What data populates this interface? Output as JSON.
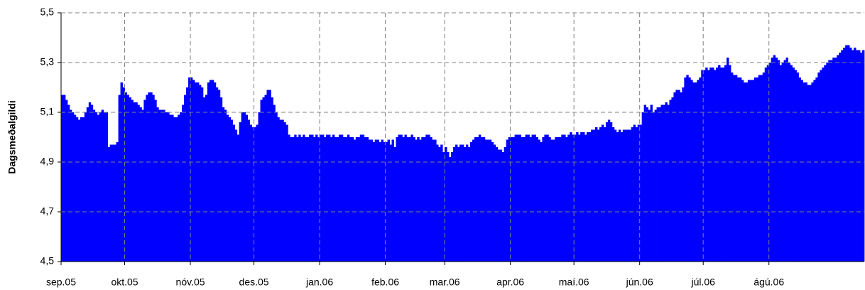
{
  "chart_data": {
    "type": "bar",
    "y_label": "Dagsmeðalgildi",
    "color": "#0000ff",
    "grid": true,
    "ylim": [
      4.5,
      5.5
    ],
    "yticks": [
      {
        "value": 4.5,
        "label": "4,5"
      },
      {
        "value": 4.7,
        "label": "4,7"
      },
      {
        "value": 4.9,
        "label": "4,9"
      },
      {
        "value": 5.1,
        "label": "5,1"
      },
      {
        "value": 5.3,
        "label": "5,3"
      },
      {
        "value": 5.5,
        "label": "5,5"
      }
    ],
    "categories": [
      "sep.05",
      null,
      null,
      null,
      null,
      null,
      null,
      null,
      null,
      null,
      null,
      null,
      null,
      null,
      null,
      null,
      null,
      null,
      null,
      null,
      null,
      null,
      null,
      null,
      null,
      null,
      null,
      null,
      null,
      null,
      "okt.05",
      null,
      null,
      null,
      null,
      null,
      null,
      null,
      null,
      null,
      null,
      null,
      null,
      null,
      null,
      null,
      null,
      null,
      null,
      null,
      null,
      null,
      null,
      null,
      null,
      null,
      null,
      null,
      null,
      null,
      null,
      "nóv.05",
      null,
      null,
      null,
      null,
      null,
      null,
      null,
      null,
      null,
      null,
      null,
      null,
      null,
      null,
      null,
      null,
      null,
      null,
      null,
      null,
      null,
      null,
      null,
      null,
      null,
      null,
      null,
      null,
      null,
      "des.05",
      null,
      null,
      null,
      null,
      null,
      null,
      null,
      null,
      null,
      null,
      null,
      null,
      null,
      null,
      null,
      null,
      null,
      null,
      null,
      null,
      null,
      null,
      null,
      null,
      null,
      null,
      null,
      null,
      null,
      null,
      "jan.06",
      null,
      null,
      null,
      null,
      null,
      null,
      null,
      null,
      null,
      null,
      null,
      null,
      null,
      null,
      null,
      null,
      null,
      null,
      null,
      null,
      null,
      null,
      null,
      null,
      null,
      null,
      null,
      null,
      null,
      null,
      "feb.06",
      null,
      null,
      null,
      null,
      null,
      null,
      null,
      null,
      null,
      null,
      null,
      null,
      null,
      null,
      null,
      null,
      null,
      null,
      null,
      null,
      null,
      null,
      null,
      null,
      null,
      null,
      null,
      "mar.06",
      null,
      null,
      null,
      null,
      null,
      null,
      null,
      null,
      null,
      null,
      null,
      null,
      null,
      null,
      null,
      null,
      null,
      null,
      null,
      null,
      null,
      null,
      null,
      null,
      null,
      null,
      null,
      null,
      null,
      null,
      "apr.06",
      null,
      null,
      null,
      null,
      null,
      null,
      null,
      null,
      null,
      null,
      null,
      null,
      null,
      null,
      null,
      null,
      null,
      null,
      null,
      null,
      null,
      null,
      null,
      null,
      null,
      null,
      null,
      null,
      null,
      "maí.06",
      null,
      null,
      null,
      null,
      null,
      null,
      null,
      null,
      null,
      null,
      null,
      null,
      null,
      null,
      null,
      null,
      null,
      null,
      null,
      null,
      null,
      null,
      null,
      null,
      null,
      null,
      null,
      null,
      null,
      null,
      "jún.06",
      null,
      null,
      null,
      null,
      null,
      null,
      null,
      null,
      null,
      null,
      null,
      null,
      null,
      null,
      null,
      null,
      null,
      null,
      null,
      null,
      null,
      null,
      null,
      null,
      null,
      null,
      null,
      null,
      null,
      "júl.06",
      null,
      null,
      null,
      null,
      null,
      null,
      null,
      null,
      null,
      null,
      null,
      null,
      null,
      null,
      null,
      null,
      null,
      null,
      null,
      null,
      null,
      null,
      null,
      null,
      null,
      null,
      null,
      null,
      null,
      null,
      "ágú.06",
      null,
      null,
      null,
      null,
      null,
      null,
      null,
      null,
      null,
      null,
      null,
      null,
      null,
      null,
      null,
      null,
      null,
      null,
      null,
      null,
      null,
      null,
      null,
      null,
      null,
      null,
      null,
      null,
      null,
      null,
      null,
      null,
      null,
      null,
      null,
      null,
      null,
      null,
      null,
      null,
      null,
      null,
      null,
      null
    ],
    "values": [
      5.17,
      5.17,
      5.15,
      5.13,
      5.11,
      5.1,
      5.09,
      5.08,
      5.07,
      5.08,
      5.08,
      5.1,
      5.12,
      5.14,
      5.13,
      5.11,
      5.1,
      5.09,
      5.1,
      5.11,
      5.1,
      5.1,
      4.96,
      4.97,
      4.97,
      4.97,
      4.98,
      5.17,
      5.22,
      5.2,
      5.18,
      5.17,
      5.16,
      5.15,
      5.14,
      5.14,
      5.13,
      5.12,
      5.11,
      5.15,
      5.17,
      5.18,
      5.18,
      5.17,
      5.15,
      5.12,
      5.11,
      5.11,
      5.11,
      5.1,
      5.1,
      5.09,
      5.09,
      5.08,
      5.08,
      5.09,
      5.1,
      5.13,
      5.17,
      5.2,
      5.24,
      5.24,
      5.23,
      5.22,
      5.22,
      5.21,
      5.2,
      5.16,
      5.17,
      5.22,
      5.23,
      5.23,
      5.22,
      5.2,
      5.19,
      5.16,
      5.12,
      5.11,
      5.09,
      5.08,
      5.07,
      5.05,
      5.03,
      5.01,
      5.06,
      5.1,
      5.1,
      5.09,
      5.07,
      5.05,
      5.04,
      5.04,
      5.05,
      5.1,
      5.15,
      5.16,
      5.17,
      5.19,
      5.19,
      5.16,
      5.13,
      5.1,
      5.08,
      5.07,
      5.07,
      5.06,
      5.05,
      5.01,
      5.0,
      5.0,
      5.01,
      5.0,
      5.01,
      5.0,
      5.01,
      5.0,
      5.0,
      5.01,
      5.01,
      5.0,
      5.01,
      5.0,
      5.01,
      5.01,
      5.0,
      5.01,
      5.01,
      5.0,
      5.01,
      5.0,
      5.0,
      5.01,
      5.01,
      5.0,
      5.0,
      5.01,
      5.0,
      5.0,
      4.99,
      5.0,
      5.0,
      5.01,
      5.01,
      5.0,
      5.0,
      4.99,
      4.99,
      4.98,
      4.99,
      4.99,
      4.98,
      4.99,
      4.98,
      4.98,
      4.99,
      4.97,
      4.99,
      4.96,
      5.0,
      5.01,
      5.01,
      5.0,
      5.01,
      5.0,
      5.0,
      5.01,
      5.0,
      4.99,
      5.0,
      4.99,
      5.0,
      5.0,
      5.01,
      5.01,
      5.0,
      4.99,
      4.99,
      4.97,
      4.96,
      4.97,
      4.94,
      4.96,
      4.94,
      4.92,
      4.94,
      4.96,
      4.97,
      4.96,
      4.97,
      4.97,
      4.96,
      4.97,
      4.96,
      4.98,
      4.99,
      5.0,
      5.0,
      5.01,
      5.0,
      5.0,
      4.99,
      4.99,
      4.99,
      4.98,
      4.97,
      4.96,
      4.95,
      4.95,
      4.94,
      4.96,
      4.99,
      5.0,
      5.0,
      5.0,
      5.01,
      5.01,
      5.01,
      5.0,
      5.0,
      5.01,
      5.01,
      5.0,
      5.01,
      5.01,
      5.0,
      4.99,
      4.98,
      5.0,
      5.01,
      5.01,
      5.0,
      4.99,
      4.99,
      5.0,
      5.0,
      5.0,
      5.01,
      5.01,
      5.0,
      5.01,
      5.02,
      5.01,
      5.01,
      5.02,
      5.01,
      5.02,
      5.02,
      5.01,
      5.02,
      5.02,
      5.03,
      5.03,
      5.04,
      5.03,
      5.04,
      5.05,
      5.04,
      5.06,
      5.07,
      5.06,
      5.04,
      5.03,
      5.02,
      5.03,
      5.02,
      5.03,
      5.03,
      5.03,
      5.03,
      5.04,
      5.05,
      5.04,
      5.05,
      5.05,
      5.1,
      5.13,
      5.12,
      5.11,
      5.13,
      5.1,
      5.11,
      5.12,
      5.12,
      5.13,
      5.13,
      5.14,
      5.13,
      5.15,
      5.16,
      5.18,
      5.19,
      5.19,
      5.18,
      5.2,
      5.24,
      5.25,
      5.24,
      5.23,
      5.22,
      5.22,
      5.23,
      5.24,
      5.27,
      5.27,
      5.28,
      5.27,
      5.28,
      5.28,
      5.27,
      5.28,
      5.29,
      5.28,
      5.28,
      5.29,
      5.32,
      5.29,
      5.26,
      5.25,
      5.25,
      5.24,
      5.24,
      5.23,
      5.22,
      5.22,
      5.23,
      5.23,
      5.23,
      5.24,
      5.24,
      5.25,
      5.25,
      5.26,
      5.28,
      5.29,
      5.3,
      5.32,
      5.33,
      5.32,
      5.31,
      5.29,
      5.3,
      5.31,
      5.32,
      5.3,
      5.29,
      5.28,
      5.27,
      5.26,
      5.24,
      5.23,
      5.22,
      5.22,
      5.21,
      5.21,
      5.22,
      5.23,
      5.24,
      5.26,
      5.27,
      5.28,
      5.29,
      5.3,
      5.31,
      5.31,
      5.32,
      5.32,
      5.33,
      5.34,
      5.35,
      5.36,
      5.37,
      5.37,
      5.36,
      5.35,
      5.36,
      5.35,
      5.35,
      5.34,
      5.35
    ]
  }
}
